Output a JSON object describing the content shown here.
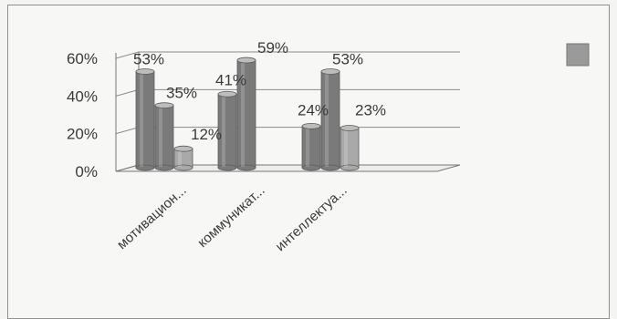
{
  "chart_data": {
    "type": "bar",
    "categories": [
      "мотивацион...",
      "коммуникат...",
      "интеллектуа..."
    ],
    "series": [
      {
        "values": [
          53,
          41,
          24
        ]
      },
      {
        "values": [
          35,
          59,
          53
        ]
      },
      {
        "values": [
          12,
          null,
          23
        ]
      }
    ],
    "data_labels": [
      [
        "53%",
        "35%",
        "12%"
      ],
      [
        "41%",
        "59%"
      ],
      [
        "24%",
        "53%",
        "23%"
      ]
    ],
    "y_ticks": [
      "0%",
      "20%",
      "40%",
      "60%"
    ],
    "ylim": [
      0,
      60
    ],
    "grid": true,
    "legend_position": "right",
    "colors": {
      "bar_dark": "#7a7a7a",
      "bar_light": "#a9a9a9",
      "legend": "#9a9a9a"
    }
  }
}
